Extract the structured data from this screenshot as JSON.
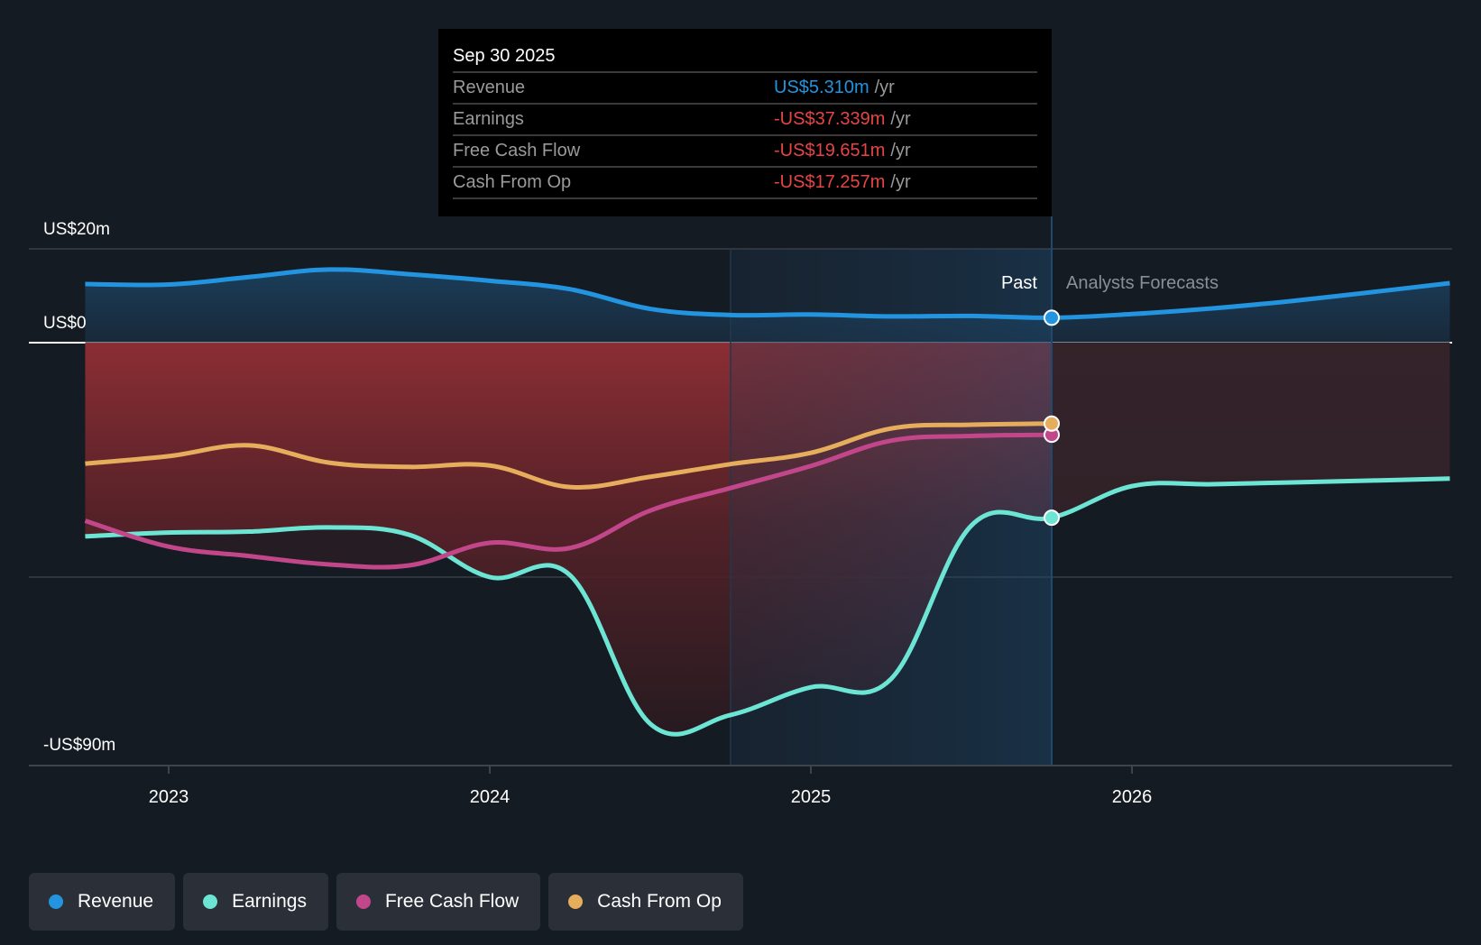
{
  "tooltip": {
    "date": "Sep 30 2025",
    "rows": [
      {
        "name": "Revenue",
        "value": "US$5.310m",
        "unit": "/yr",
        "color": "#2394df"
      },
      {
        "name": "Earnings",
        "value": "-US$37.339m",
        "unit": "/yr",
        "color": "#e64545"
      },
      {
        "name": "Free Cash Flow",
        "value": "-US$19.651m",
        "unit": "/yr",
        "color": "#e64545"
      },
      {
        "name": "Cash From Op",
        "value": "-US$17.257m",
        "unit": "/yr",
        "color": "#e64545"
      }
    ]
  },
  "labels": {
    "past": "Past",
    "forecast": "Analysts Forecasts"
  },
  "legend": [
    {
      "name": "Revenue",
      "color": "#2394df"
    },
    {
      "name": "Earnings",
      "color": "#6ce5d4"
    },
    {
      "name": "Free Cash Flow",
      "color": "#c2478a"
    },
    {
      "name": "Cash From Op",
      "color": "#e6ad5c"
    }
  ],
  "chart_data": {
    "type": "line",
    "title": "",
    "xlabel": "",
    "ylabel": "",
    "units": "US$ millions",
    "xlim": [
      2022.6,
      2027.0
    ],
    "ylim": [
      -90,
      20
    ],
    "y_ticks": [
      {
        "value": 20,
        "label": "US$20m"
      },
      {
        "value": 0,
        "label": "US$0"
      },
      {
        "value": -90,
        "label": "-US$90m"
      }
    ],
    "gridlines": [
      20,
      0,
      -50
    ],
    "x_ticks": [
      {
        "value": 2023,
        "label": "2023"
      },
      {
        "value": 2024,
        "label": "2024"
      },
      {
        "value": 2025,
        "label": "2025"
      },
      {
        "value": 2026,
        "label": "2026"
      }
    ],
    "past_end": 2025.75,
    "highlight_start": 2024.75,
    "legend_position": "bottom-left",
    "series": [
      {
        "name": "Revenue",
        "color": "#2394df",
        "x": [
          2022.74,
          2023.0,
          2023.25,
          2023.5,
          2023.75,
          2024.0,
          2024.25,
          2024.5,
          2024.75,
          2025.0,
          2025.25,
          2025.5,
          2025.75,
          2026.0,
          2026.25,
          2026.5,
          2026.75,
          2026.99
        ],
        "values": [
          12.5,
          12.4,
          14.0,
          15.6,
          14.6,
          13.2,
          11.4,
          7.2,
          5.9,
          6.0,
          5.6,
          5.7,
          5.31,
          6.1,
          7.3,
          8.9,
          10.8,
          12.7
        ]
      },
      {
        "name": "Earnings",
        "color": "#6ce5d4",
        "x": [
          2022.74,
          2023.0,
          2023.25,
          2023.5,
          2023.75,
          2024.0,
          2024.25,
          2024.5,
          2024.75,
          2025.0,
          2025.25,
          2025.5,
          2025.75,
          2026.0,
          2026.25,
          2026.5,
          2026.75,
          2026.99
        ],
        "values": [
          -41.3,
          -40.5,
          -40.3,
          -39.4,
          -41.0,
          -50.0,
          -49.6,
          -81.3,
          -79.4,
          -73.5,
          -71.7,
          -39.0,
          -37.339,
          -30.6,
          -30.2,
          -29.8,
          -29.4,
          -29.0
        ]
      },
      {
        "name": "Free Cash Flow",
        "color": "#c2478a",
        "x": [
          2022.74,
          2023.0,
          2023.25,
          2023.5,
          2023.75,
          2024.0,
          2024.25,
          2024.5,
          2024.75,
          2025.0,
          2025.25,
          2025.5,
          2025.75
        ],
        "values": [
          -38.0,
          -43.5,
          -45.5,
          -47.3,
          -47.5,
          -42.7,
          -43.8,
          -35.8,
          -31.0,
          -26.3,
          -20.9,
          -19.9,
          -19.651
        ]
      },
      {
        "name": "Cash From Op",
        "color": "#e6ad5c",
        "x": [
          2022.74,
          2023.0,
          2023.25,
          2023.5,
          2023.75,
          2024.0,
          2024.25,
          2024.5,
          2024.75,
          2025.0,
          2025.25,
          2025.5,
          2025.75
        ],
        "values": [
          -25.8,
          -24.2,
          -21.9,
          -25.6,
          -26.5,
          -26.2,
          -30.8,
          -28.6,
          -25.9,
          -23.5,
          -18.3,
          -17.5,
          -17.257
        ]
      }
    ]
  }
}
